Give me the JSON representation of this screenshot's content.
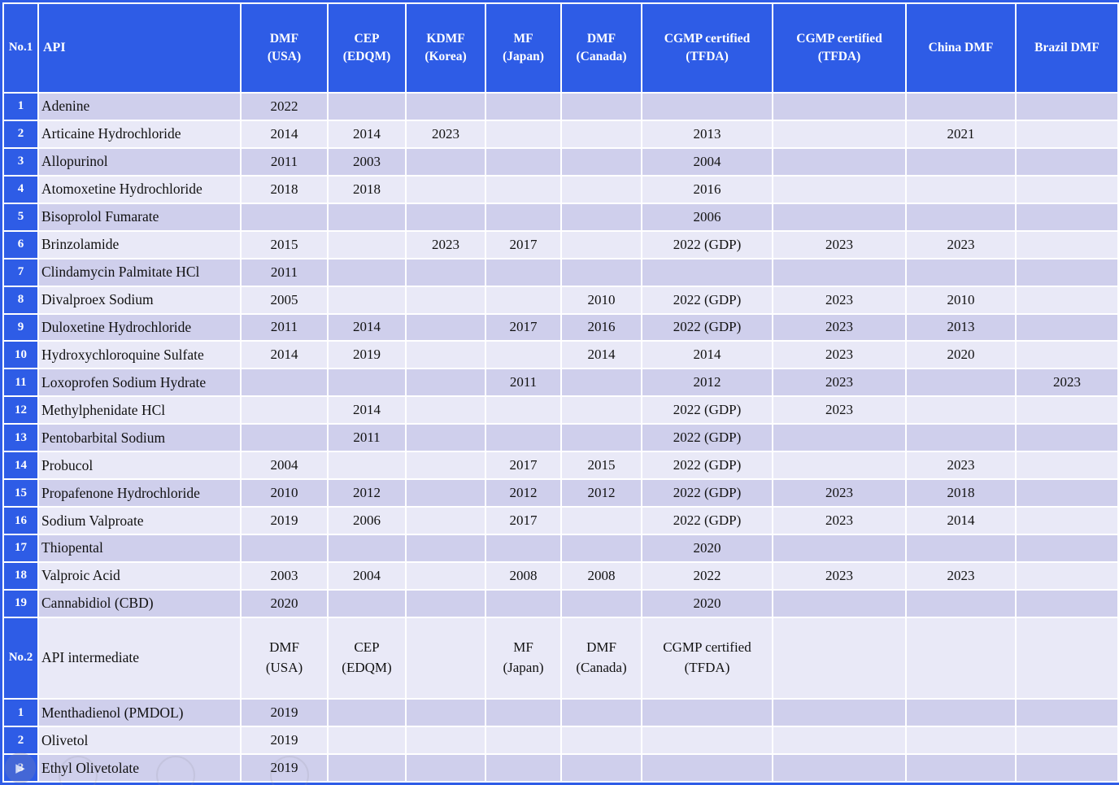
{
  "page": {
    "accent_color": "#2e5ce6",
    "row_dark_color": "#cfcfec",
    "row_light_color": "#e9e9f7",
    "grid_color": "#ffffff",
    "text_color": "#111111"
  },
  "icons": {
    "watermark_play": "▶"
  },
  "table": {
    "section1": {
      "header": {
        "no": "No.1",
        "api": "API",
        "cols": [
          "DMF\n(USA)",
          "CEP\n(EDQM)",
          "KDMF\n(Korea)",
          "MF\n(Japan)",
          "DMF\n(Canada)",
          "CGMP certified\n(TFDA)",
          "CGMP certified\n(TFDA)",
          "China DMF",
          "Brazil DMF"
        ]
      },
      "rows": [
        {
          "no": "1",
          "api": "Adenine",
          "cells": [
            "2022",
            "",
            "",
            "",
            "",
            "",
            "",
            "",
            ""
          ]
        },
        {
          "no": "2",
          "api": "Articaine Hydrochloride",
          "cells": [
            "2014",
            "2014",
            "2023",
            "",
            "",
            "2013",
            "",
            "2021",
            ""
          ]
        },
        {
          "no": "3",
          "api": "Allopurinol",
          "cells": [
            "2011",
            "2003",
            "",
            "",
            "",
            "2004",
            "",
            "",
            ""
          ]
        },
        {
          "no": "4",
          "api": "Atomoxetine Hydrochloride",
          "cells": [
            "2018",
            "2018",
            "",
            "",
            "",
            "2016",
            "",
            "",
            ""
          ]
        },
        {
          "no": "5",
          "api": "Bisoprolol Fumarate",
          "cells": [
            "",
            "",
            "",
            "",
            "",
            "2006",
            "",
            "",
            ""
          ]
        },
        {
          "no": "6",
          "api": "Brinzolamide",
          "cells": [
            "2015",
            "",
            "2023",
            "2017",
            "",
            "2022 (GDP)",
            "2023",
            "2023",
            ""
          ]
        },
        {
          "no": "7",
          "api": "Clindamycin Palmitate HCl",
          "cells": [
            "2011",
            "",
            "",
            "",
            "",
            "",
            "",
            "",
            ""
          ]
        },
        {
          "no": "8",
          "api": "Divalproex Sodium",
          "cells": [
            "2005",
            "",
            "",
            "",
            "2010",
            "2022 (GDP)",
            "2023",
            "2010",
            ""
          ]
        },
        {
          "no": "9",
          "api": "Duloxetine Hydrochloride",
          "cells": [
            "2011",
            "2014",
            "",
            "2017",
            "2016",
            "2022 (GDP)",
            "2023",
            "2013",
            ""
          ]
        },
        {
          "no": "10",
          "api": "Hydroxychloroquine Sulfate",
          "cells": [
            "2014",
            "2019",
            "",
            "",
            "2014",
            "2014",
            "2023",
            "2020",
            ""
          ]
        },
        {
          "no": "11",
          "api": "Loxoprofen Sodium Hydrate",
          "cells": [
            "",
            "",
            "",
            "2011",
            "",
            "2012",
            "2023",
            "",
            "2023"
          ]
        },
        {
          "no": "12",
          "api": "Methylphenidate HCl",
          "cells": [
            "",
            "2014",
            "",
            "",
            "",
            "2022 (GDP)",
            "2023",
            "",
            ""
          ]
        },
        {
          "no": "13",
          "api": "Pentobarbital Sodium",
          "cells": [
            "",
            "2011",
            "",
            "",
            "",
            "2022 (GDP)",
            "",
            "",
            ""
          ]
        },
        {
          "no": "14",
          "api": "Probucol",
          "cells": [
            "2004",
            "",
            "",
            "2017",
            "2015",
            "2022 (GDP)",
            "",
            "2023",
            ""
          ]
        },
        {
          "no": "15",
          "api": "Propafenone Hydrochloride",
          "cells": [
            "2010",
            "2012",
            "",
            "2012",
            "2012",
            "2022 (GDP)",
            "2023",
            "2018",
            ""
          ]
        },
        {
          "no": "16",
          "api": "Sodium Valproate",
          "cells": [
            "2019",
            "2006",
            "",
            "2017",
            "",
            "2022 (GDP)",
            "2023",
            "2014",
            ""
          ]
        },
        {
          "no": "17",
          "api": "Thiopental",
          "cells": [
            "",
            "",
            "",
            "",
            "",
            "2020",
            "",
            "",
            ""
          ]
        },
        {
          "no": "18",
          "api": "Valproic Acid",
          "cells": [
            "2003",
            "2004",
            "",
            "2008",
            "2008",
            "2022",
            "2023",
            "2023",
            ""
          ]
        },
        {
          "no": "19",
          "api": "Cannabidiol (CBD)",
          "cells": [
            "2020",
            "",
            "",
            "",
            "",
            "2020",
            "",
            "",
            ""
          ]
        }
      ]
    },
    "section2": {
      "header": {
        "no": "No.2",
        "api": "API intermediate",
        "cols": [
          "DMF\n(USA)",
          "CEP\n(EDQM)",
          "",
          "MF\n(Japan)",
          "DMF\n(Canada)",
          "CGMP certified\n(TFDA)",
          "",
          "",
          ""
        ]
      },
      "rows": [
        {
          "no": "1",
          "api": "Menthadienol (PMDOL)",
          "cells": [
            "2019",
            "",
            "",
            "",
            "",
            "",
            "",
            "",
            ""
          ]
        },
        {
          "no": "2",
          "api": "Olivetol",
          "cells": [
            "2019",
            "",
            "",
            "",
            "",
            "",
            "",
            "",
            ""
          ]
        },
        {
          "no": "3",
          "api": "Ethyl Olivetolate",
          "cells": [
            "2019",
            "",
            "",
            "",
            "",
            "",
            "",
            "",
            ""
          ]
        }
      ]
    }
  }
}
